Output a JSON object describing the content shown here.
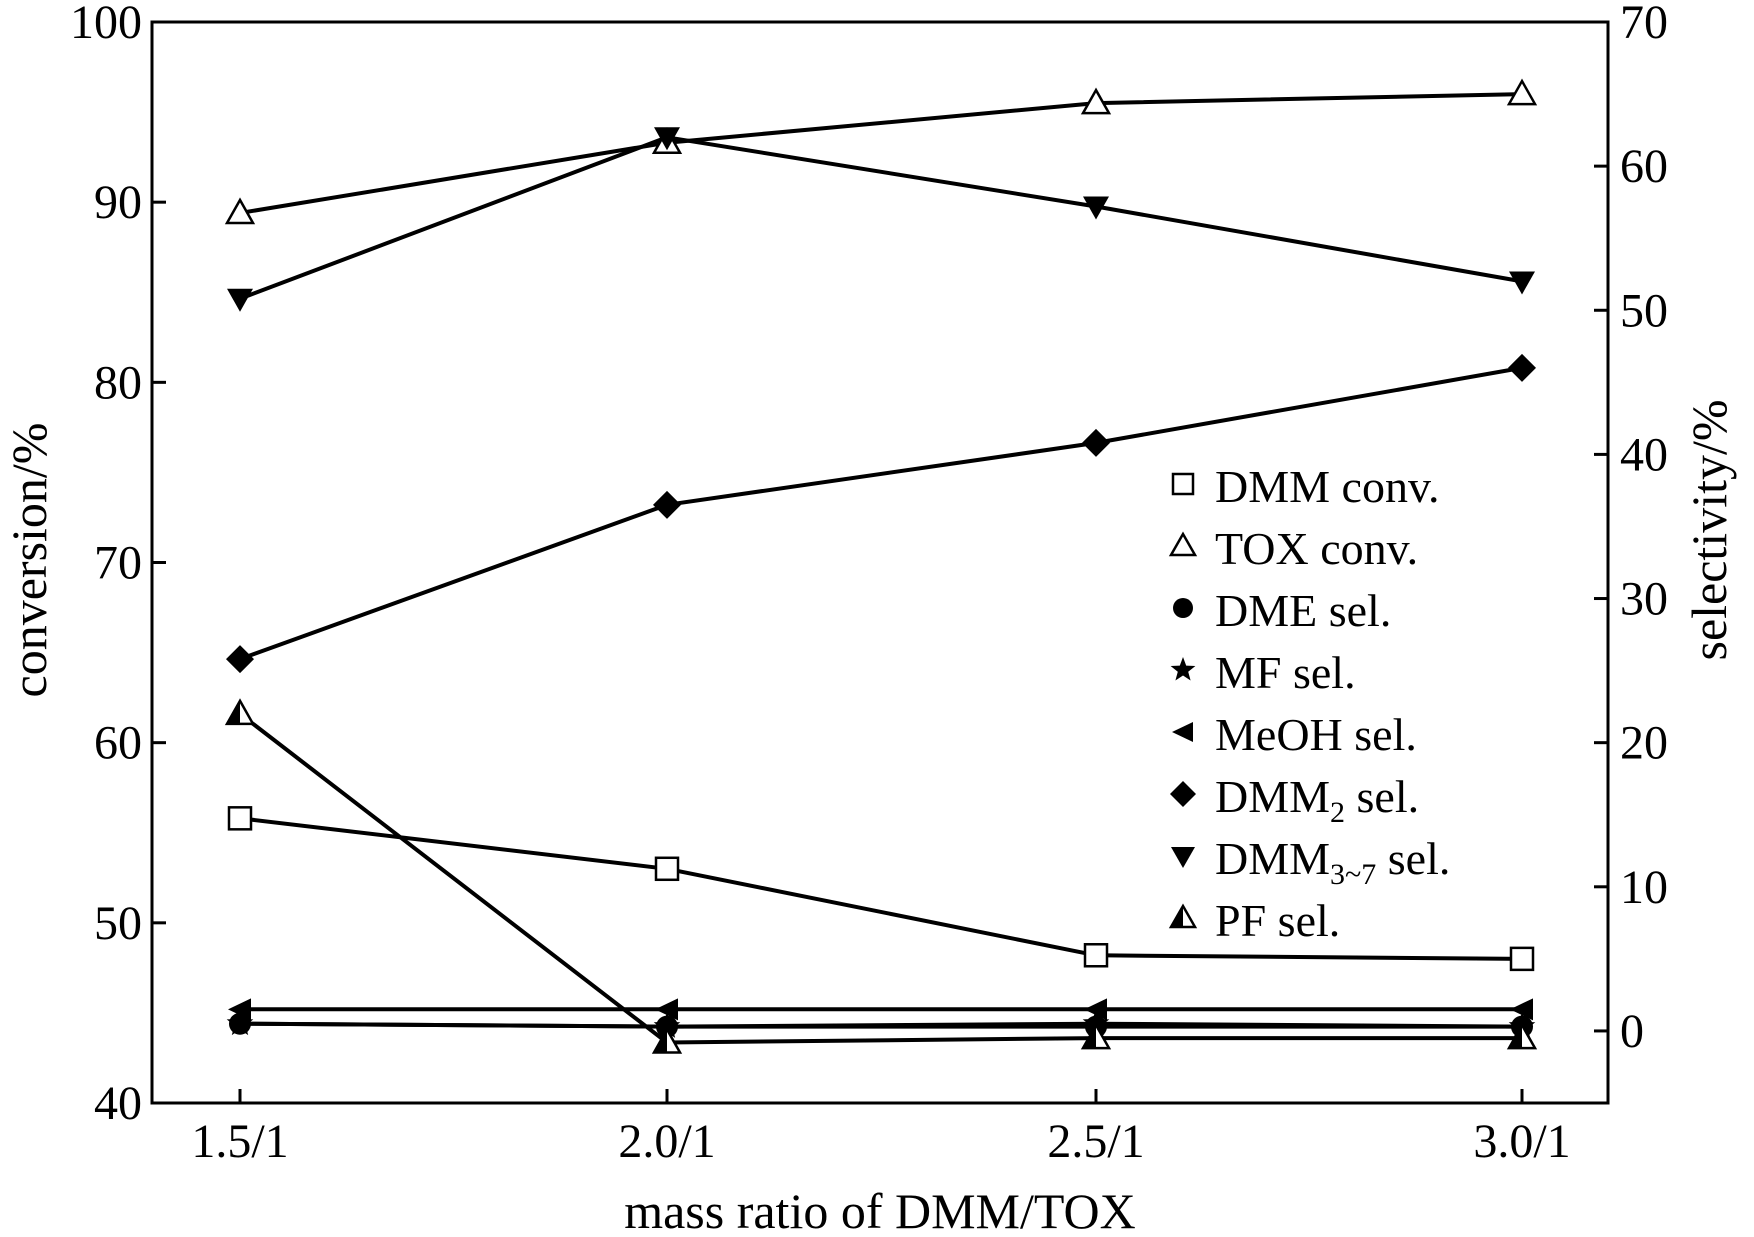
{
  "chart_data": {
    "type": "line",
    "categories": [
      "1.5/1",
      "2.0/1",
      "2.5/1",
      "3.0/1"
    ],
    "xlabel": "mass ratio of DMM/TOX",
    "ylabel": "conversion/%",
    "y2label": "selectivity/%",
    "ylim": [
      40,
      100
    ],
    "y2lim": [
      -5,
      70
    ],
    "yticks": [
      40,
      50,
      60,
      70,
      80,
      90,
      100
    ],
    "y2ticks": [
      0,
      10,
      20,
      30,
      40,
      50,
      60,
      70
    ],
    "grid": false,
    "legend_position": "center-right",
    "series": [
      {
        "name": "DMM conv.",
        "axis": "left",
        "marker": "open-square",
        "values": [
          55.8,
          53.0,
          48.2,
          48.0
        ]
      },
      {
        "name": "TOX conv.",
        "axis": "left",
        "marker": "open-triangle-up",
        "values": [
          89.4,
          93.3,
          95.5,
          96.0
        ]
      },
      {
        "name": "DME sel.",
        "axis": "right",
        "marker": "filled-circle",
        "values": [
          0.5,
          0.3,
          0.3,
          0.3
        ]
      },
      {
        "name": "MF sel.",
        "axis": "right",
        "marker": "filled-star",
        "values": [
          0.5,
          0.3,
          0.5,
          0.3
        ]
      },
      {
        "name": "MeOH sel.",
        "axis": "right",
        "marker": "filled-triangle-left",
        "values": [
          1.5,
          1.5,
          1.5,
          1.5
        ]
      },
      {
        "name": "DMM",
        "name_sub": "2",
        "name_suffix": " sel.",
        "axis": "right",
        "marker": "filled-diamond",
        "values": [
          25.8,
          36.5,
          40.8,
          46.0
        ]
      },
      {
        "name": "DMM",
        "name_sub": "3~7",
        "name_suffix": " sel.",
        "axis": "right",
        "marker": "filled-triangle-down",
        "values": [
          50.8,
          62.0,
          57.2,
          52.0
        ]
      },
      {
        "name": "PF sel.",
        "axis": "right",
        "marker": "half-triangle-up",
        "values": [
          22.0,
          -0.8,
          -0.5,
          -0.5
        ]
      }
    ]
  }
}
